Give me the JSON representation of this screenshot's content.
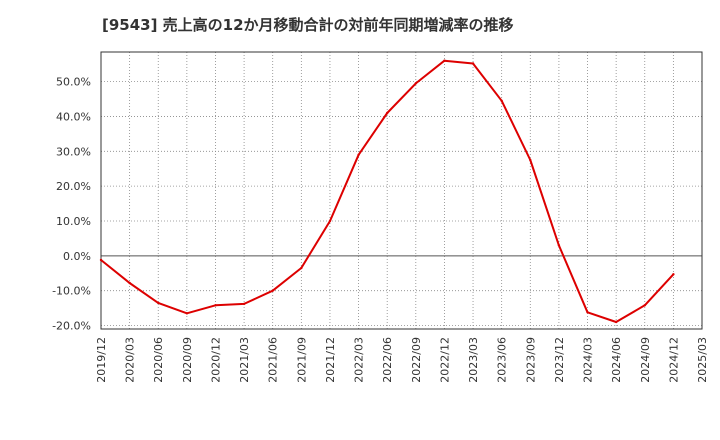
{
  "chart_data": {
    "type": "line",
    "title": "[9543]  売上高の12か月移動合計の対前年同期増減率の推移",
    "xlabel": "",
    "ylabel": "",
    "x_tick_labels": [
      "2019/12",
      "2020/03",
      "2020/06",
      "2020/09",
      "2020/12",
      "2021/03",
      "2021/06",
      "2021/09",
      "2021/12",
      "2022/03",
      "2022/06",
      "2022/09",
      "2022/12",
      "2023/03",
      "2023/06",
      "2023/09",
      "2023/12",
      "2024/03",
      "2024/06",
      "2024/09",
      "2024/12",
      "2025/03"
    ],
    "y_tick_labels": [
      "-20.0%",
      "-10.0%",
      "0.0%",
      "10.0%",
      "20.0%",
      "30.0%",
      "40.0%",
      "50.0%"
    ],
    "y_ticks": [
      -20,
      -10,
      0,
      10,
      20,
      30,
      40,
      50
    ],
    "ylim": [
      -21,
      58.5
    ],
    "grid": true,
    "zero_line": true,
    "series": [
      {
        "name": "売上高の12か月移動合計の対前年同期増減率",
        "color": "#dd0000",
        "x": [
          "2019/12",
          "2020/03",
          "2020/06",
          "2020/09",
          "2020/12",
          "2021/03",
          "2021/06",
          "2021/09",
          "2021/12",
          "2022/03",
          "2022/06",
          "2022/09",
          "2022/12",
          "2023/03",
          "2023/06",
          "2023/09",
          "2023/12",
          "2024/03",
          "2024/06",
          "2024/09",
          "2024/12"
        ],
        "values": [
          -1.2,
          -7.8,
          -13.5,
          -16.5,
          -14.2,
          -13.8,
          -10.0,
          -3.5,
          10.0,
          29.0,
          41.0,
          49.5,
          56.0,
          55.2,
          44.5,
          27.5,
          3.0,
          -16.2,
          -19.0,
          -14.2,
          -5.3
        ]
      }
    ]
  }
}
